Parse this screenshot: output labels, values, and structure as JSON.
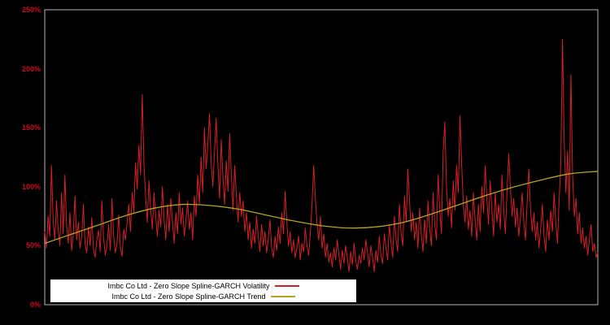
{
  "page": {
    "background_color": "#000000"
  },
  "chart_data": {
    "type": "line",
    "title": "",
    "xlabel": "",
    "ylabel": "",
    "ylim": [
      0,
      250
    ],
    "grid": false,
    "plot_background": "#000000",
    "frame_color": "#b9b9b9",
    "axis_label_color": "#cc0a1e",
    "legend_position": "bottom-left-overlay",
    "y_ticks": [
      {
        "label": "0%",
        "value": 0
      },
      {
        "label": "50%",
        "value": 50
      },
      {
        "label": "100%",
        "value": 100
      },
      {
        "label": "150%",
        "value": 150
      },
      {
        "label": "200%",
        "value": 200
      },
      {
        "label": "250%",
        "value": 250
      }
    ],
    "series": [
      {
        "name": "Imbc Co Ltd - Zero Slope Spline-GARCH Volatility",
        "color": "#d71f26",
        "unit": "%",
        "values": [
          62,
          48,
          75,
          58,
          118,
          72,
          55,
          88,
          64,
          50,
          95,
          60,
          110,
          67,
          52,
          78,
          46,
          60,
          92,
          55,
          70,
          48,
          58,
          85,
          52,
          44,
          66,
          50,
          74,
          47,
          40,
          55,
          63,
          45,
          88,
          57,
          42,
          50,
          68,
          46,
          90,
          58,
          44,
          52,
          76,
          48,
          41,
          64,
          55,
          70,
          85,
          62,
          95,
          78,
          120,
          98,
          135,
          110,
          178,
          120,
          92,
          70,
          105,
          82,
          64,
          95,
          75,
          58,
          80,
          66,
          100,
          72,
          55,
          85,
          62,
          90,
          70,
          52,
          78,
          60,
          95,
          68,
          82,
          58,
          72,
          88,
          64,
          78,
          55,
          92,
          75,
          110,
          85,
          125,
          95,
          150,
          115,
          135,
          162,
          120,
          100,
          130,
          158,
          118,
          90,
          140,
          108,
          85,
          122,
          96,
          145,
          110,
          80,
          118,
          92,
          70,
          95,
          75,
          88,
          62,
          78,
          55,
          70,
          48,
          64,
          52,
          75,
          58,
          45,
          68,
          50,
          62,
          44,
          56,
          72,
          48,
          40,
          58,
          46,
          66,
          52,
          78,
          60,
          96,
          70,
          50,
          62,
          44,
          55,
          40,
          48,
          58,
          38,
          52,
          45,
          65,
          50,
          42,
          60,
          85,
          118,
          90,
          68,
          55,
          75,
          48,
          60,
          40,
          52,
          36,
          44,
          32,
          48,
          38,
          55,
          42,
          30,
          46,
          35,
          50,
          40,
          28,
          45,
          34,
          52,
          38,
          30,
          42,
          35,
          48,
          38,
          55,
          44,
          32,
          50,
          40,
          28,
          46,
          36,
          58,
          42,
          35,
          60,
          48,
          38,
          68,
          52,
          40,
          75,
          55,
          45,
          85,
          60,
          50,
          92,
          70,
          115,
          88,
          62,
          78,
          55,
          70,
          48,
          82,
          60,
          45,
          72,
          52,
          88,
          64,
          50,
          95,
          68,
          55,
          110,
          80,
          60,
          130,
          155,
          100,
          75,
          90,
          65,
          105,
          80,
          118,
          95,
          160,
          120,
          85,
          70,
          92,
          64,
          80,
          58,
          95,
          72,
          55,
          85,
          62,
          100,
          78,
          118,
          90,
          68,
          105,
          80,
          58,
          95,
          70,
          85,
          64,
          110,
          82,
          60,
          96,
          128,
          100,
          75,
          90,
          66,
          82,
          58,
          74,
          95,
          70,
          55,
          88,
          115,
          80,
          62,
          78,
          55,
          70,
          48,
          64,
          85,
          58,
          45,
          72,
          55,
          80,
          62,
          95,
          70,
          52,
          88,
          120,
          225,
          140,
          95,
          130,
          80,
          195,
          110,
          75,
          90,
          60,
          78,
          52,
          65,
          48,
          58,
          42,
          55,
          68,
          45,
          52,
          40,
          44
        ]
      },
      {
        "name": "Imbc Co Ltd - Zero Slope Spline-GARCH Trend",
        "color": "#b5a41e",
        "unit": "%",
        "x_fraction_step": 0.05,
        "values": [
          52,
          60,
          68,
          76,
          82,
          85,
          84,
          81,
          76,
          71,
          67,
          65,
          66,
          70,
          77,
          85,
          93,
          100,
          106,
          111,
          113
        ]
      }
    ]
  },
  "legend": {
    "items": [
      {
        "label": "Imbc Co Ltd - Zero Slope Spline-GARCH Volatility",
        "color": "#d71f26"
      },
      {
        "label": "Imbc Co Ltd - Zero Slope Spline-GARCH Trend",
        "color": "#b5a41e"
      }
    ]
  }
}
